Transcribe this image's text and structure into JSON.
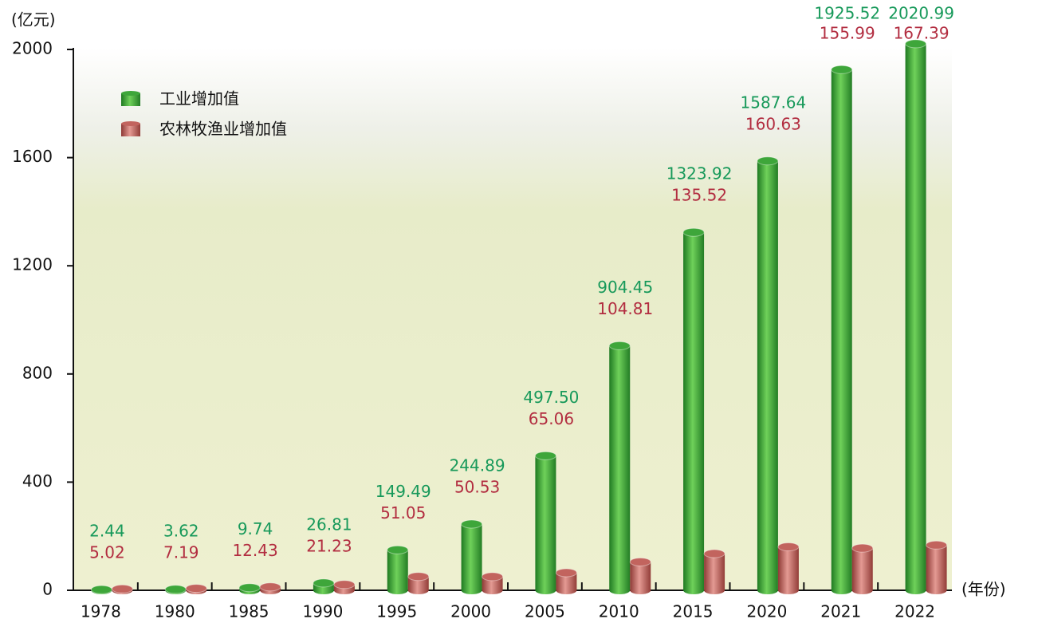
{
  "chart_data": {
    "type": "bar",
    "y_label": "(亿元)",
    "x_label": "(年份)",
    "categories": [
      "1978",
      "1980",
      "1985",
      "1990",
      "1995",
      "2000",
      "2005",
      "2010",
      "2015",
      "2020",
      "2021",
      "2022"
    ],
    "series": [
      {
        "name": "工业增加值",
        "color": "#3ea63a",
        "label_color": "#17995a",
        "values": [
          2.44,
          3.62,
          9.74,
          26.81,
          149.49,
          244.89,
          497.5,
          904.45,
          1323.92,
          1587.64,
          1925.52,
          2020.99
        ],
        "value_labels": [
          "2.44",
          "3.62",
          "9.74",
          "26.81",
          "149.49",
          "244.89",
          "497.50",
          "904.45",
          "1323.92",
          "1587.64",
          "1925.52",
          "2020.99"
        ]
      },
      {
        "name": "农林牧渔业增加值",
        "color": "#c2645e",
        "label_color": "#b22d40",
        "values": [
          5.02,
          7.19,
          12.43,
          21.23,
          51.05,
          50.53,
          65.06,
          104.81,
          135.52,
          160.63,
          155.99,
          167.39
        ]
      }
    ],
    "ylim": [
      0,
      2000
    ],
    "yticks": [
      0,
      400,
      800,
      1200,
      1600,
      2000
    ]
  }
}
